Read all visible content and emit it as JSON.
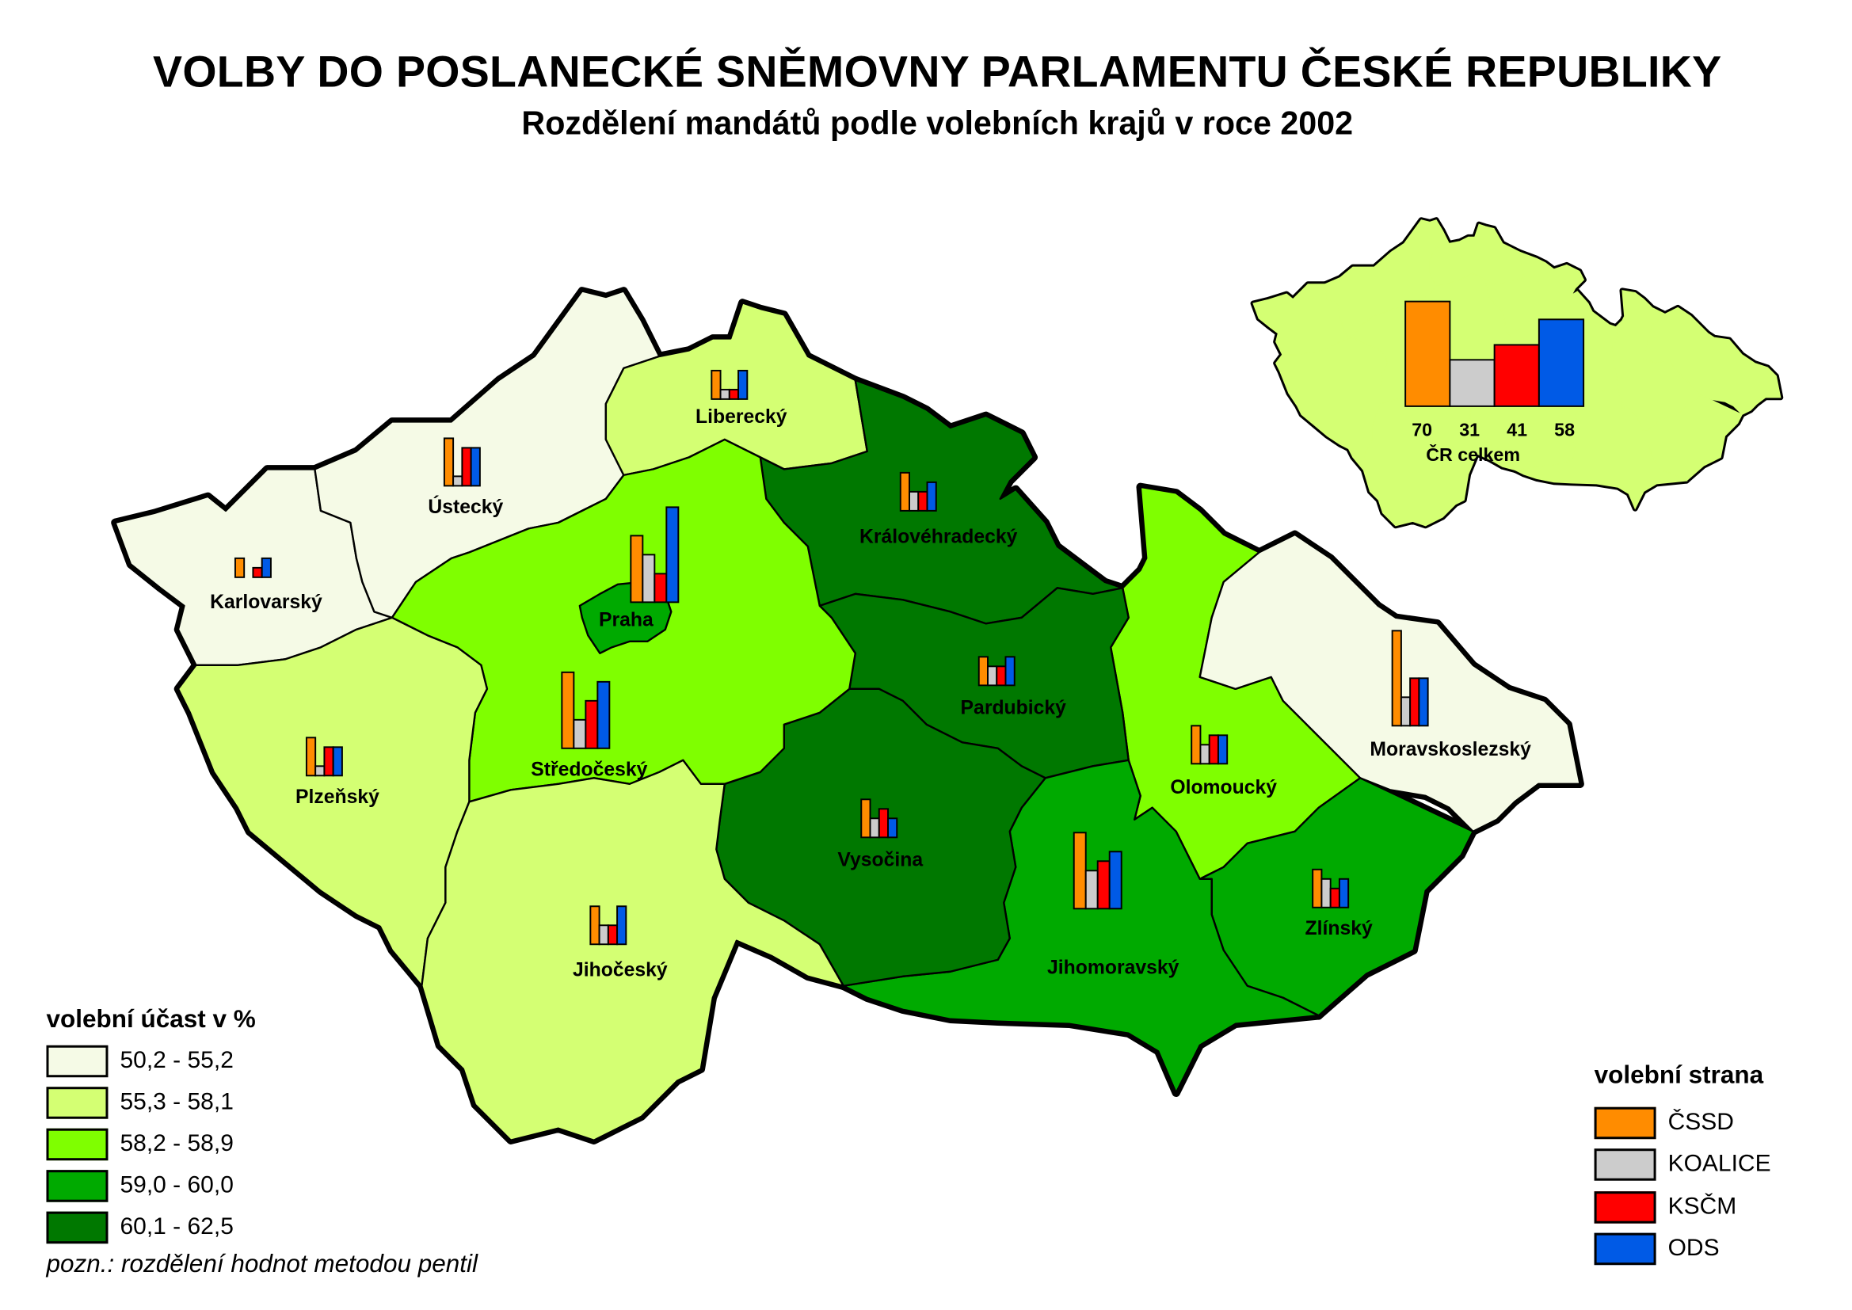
{
  "title": "VOLBY DO POSLANECKÉ SNĚMOVNY PARLAMENTU ČESKÉ REPUBLIKY",
  "subtitle": "Rozdělení mandátů podle volebních krajů v roce 2002",
  "turnout_legend": {
    "title": "volební účast v %",
    "classes": [
      {
        "range": "50,2 - 55,2",
        "color": "#F5FAE6"
      },
      {
        "range": "55,3 - 58,1",
        "color": "#D4FF73"
      },
      {
        "range": "58,2 - 58,9",
        "color": "#7FFF00"
      },
      {
        "range": "59,0 - 60,0",
        "color": "#00AA00"
      },
      {
        "range": "60,1 - 62,5",
        "color": "#007800"
      }
    ]
  },
  "note": "pozn.: rozdělení hodnot metodou pentil",
  "party_legend": {
    "title": "volební strana",
    "parties": [
      {
        "name": "ČSSD",
        "color": "#FF8C00"
      },
      {
        "name": "KOALICE",
        "color": "#CCCCCC"
      },
      {
        "name": "KSČM",
        "color": "#FF0000"
      },
      {
        "name": "ODS",
        "color": "#005AE6"
      }
    ]
  },
  "regions": [
    {
      "name": "Karlovarský",
      "turnout_class": 0,
      "mandates": [
        2,
        0,
        1,
        2
      ]
    },
    {
      "name": "Ústecký",
      "turnout_class": 0,
      "mandates": [
        5,
        1,
        4,
        4
      ]
    },
    {
      "name": "Liberecký",
      "turnout_class": 1,
      "mandates": [
        3,
        1,
        1,
        3
      ]
    },
    {
      "name": "Královéhradecký",
      "turnout_class": 4,
      "mandates": [
        4,
        2,
        2,
        3
      ]
    },
    {
      "name": "Olomoucký",
      "turnout_class": 2,
      "mandates": [
        4,
        2,
        3,
        3
      ]
    },
    {
      "name": "Pardubický",
      "turnout_class": 4,
      "mandates": [
        3,
        2,
        2,
        3
      ]
    },
    {
      "name": "Moravskoslezský",
      "turnout_class": 0,
      "mandates": [
        10,
        3,
        5,
        5
      ]
    },
    {
      "name": "Zlínský",
      "turnout_class": 3,
      "mandates": [
        4,
        3,
        2,
        3
      ]
    },
    {
      "name": "Jihomoravský",
      "turnout_class": 3,
      "mandates": [
        8,
        4,
        5,
        6
      ]
    },
    {
      "name": "Vysočina",
      "turnout_class": 4,
      "mandates": [
        4,
        2,
        3,
        2
      ]
    },
    {
      "name": "Středočeský",
      "turnout_class": 2,
      "mandates": [
        8,
        3,
        5,
        7
      ]
    },
    {
      "name": "Plzeňský",
      "turnout_class": 1,
      "mandates": [
        4,
        1,
        3,
        3
      ]
    },
    {
      "name": "Jihočeský",
      "turnout_class": 1,
      "mandates": [
        4,
        2,
        2,
        4
      ]
    },
    {
      "name": "Praha",
      "turnout_class": 3,
      "mandates": [
        7,
        5,
        3,
        10
      ]
    }
  ],
  "national": {
    "label": "ČR celkem",
    "turnout_class": 1,
    "mandates": [
      70,
      31,
      41,
      58
    ]
  }
}
